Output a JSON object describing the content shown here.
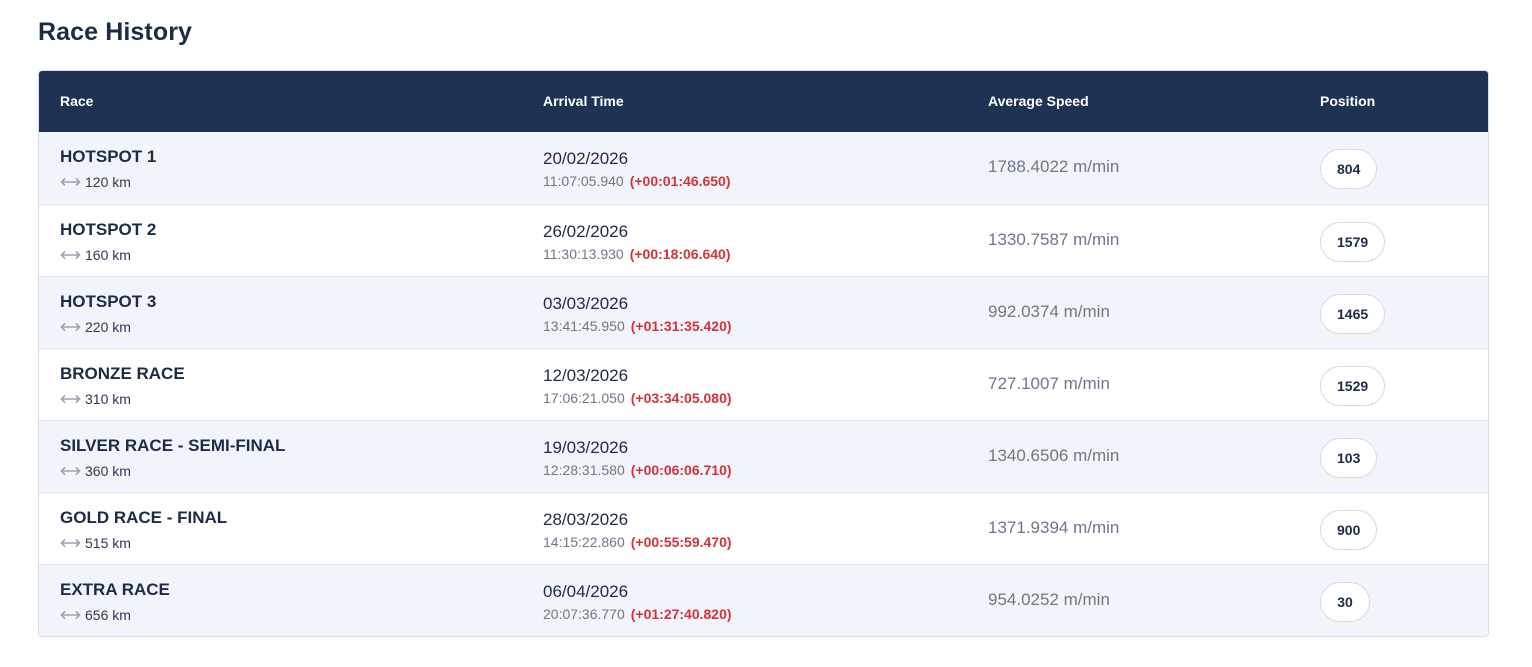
{
  "page": {
    "title": "Race History"
  },
  "table": {
    "headers": {
      "race": "Race",
      "arrival": "Arrival Time",
      "speed": "Average Speed",
      "position": "Position"
    },
    "rows": [
      {
        "name": "HOTSPOT 1",
        "distance": "120 km",
        "date": "20/02/2026",
        "time": "11:07:05.940",
        "delta": "(+00:01:46.650)",
        "speed": "1788.4022 m/min",
        "position": "804"
      },
      {
        "name": "HOTSPOT 2",
        "distance": "160 km",
        "date": "26/02/2026",
        "time": "11:30:13.930",
        "delta": "(+00:18:06.640)",
        "speed": "1330.7587 m/min",
        "position": "1579"
      },
      {
        "name": "HOTSPOT 3",
        "distance": "220 km",
        "date": "03/03/2026",
        "time": "13:41:45.950",
        "delta": "(+01:31:35.420)",
        "speed": "992.0374 m/min",
        "position": "1465"
      },
      {
        "name": "BRONZE RACE",
        "distance": "310 km",
        "date": "12/03/2026",
        "time": "17:06:21.050",
        "delta": "(+03:34:05.080)",
        "speed": "727.1007 m/min",
        "position": "1529"
      },
      {
        "name": "SILVER RACE - SEMI-FINAL",
        "distance": "360 km",
        "date": "19/03/2026",
        "time": "12:28:31.580",
        "delta": "(+00:06:06.710)",
        "speed": "1340.6506 m/min",
        "position": "103"
      },
      {
        "name": "GOLD RACE - FINAL",
        "distance": "515 km",
        "date": "28/03/2026",
        "time": "14:15:22.860",
        "delta": "(+00:55:59.470)",
        "speed": "1371.9394 m/min",
        "position": "900"
      },
      {
        "name": "EXTRA RACE",
        "distance": "656 km",
        "date": "06/04/2026",
        "time": "20:07:36.770",
        "delta": "(+01:27:40.820)",
        "speed": "954.0252 m/min",
        "position": "30"
      }
    ]
  },
  "icons": {
    "distance": "horizontal-double-arrow-icon"
  },
  "colors": {
    "header_bg": "#203253",
    "row_alt_bg": "#f1f5fb",
    "delta_red": "#d2323b",
    "title_text": "#1c2b47"
  }
}
